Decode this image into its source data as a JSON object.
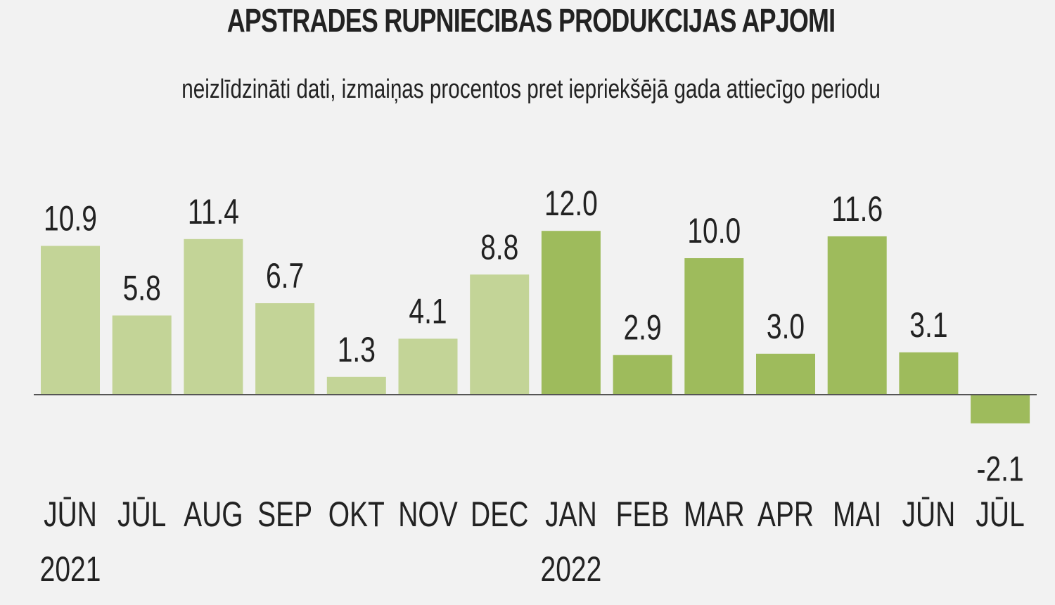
{
  "title": "APSTRADES RUPNIECIBAS PRODUKCIJAS APJOMI",
  "subtitle": "neizlīdzināti dati, izmaiņas procentos pret iepriekšējā gada attiecīgo periodu",
  "chart_data": {
    "type": "bar",
    "categories": [
      "JŪN",
      "JŪL",
      "AUG",
      "SEP",
      "OKT",
      "NOV",
      "DEC",
      "JAN",
      "FEB",
      "MAR",
      "APR",
      "MAI",
      "JŪN",
      "JŪL"
    ],
    "values": [
      10.9,
      5.8,
      11.4,
      6.7,
      1.3,
      4.1,
      8.8,
      12.0,
      2.9,
      10.0,
      3.0,
      11.6,
      3.1,
      -2.1
    ],
    "value_labels": [
      "10.9",
      "5.8",
      "11.4",
      "6.7",
      "1.3",
      "4.1",
      "8.8",
      "12.0",
      "2.9",
      "10.0",
      "3.0",
      "11.6",
      "3.1",
      "-2.1"
    ],
    "year_labels": [
      {
        "index": 0,
        "label": "2021"
      },
      {
        "index": 7,
        "label": "2022"
      }
    ],
    "colors": {
      "year_2021": "#c3d497",
      "year_2022": "#9ebb5c",
      "axis": "#555555"
    },
    "xlabel": "",
    "ylabel": "",
    "ylim": [
      -3,
      13
    ],
    "grid": false,
    "legend": "none"
  }
}
